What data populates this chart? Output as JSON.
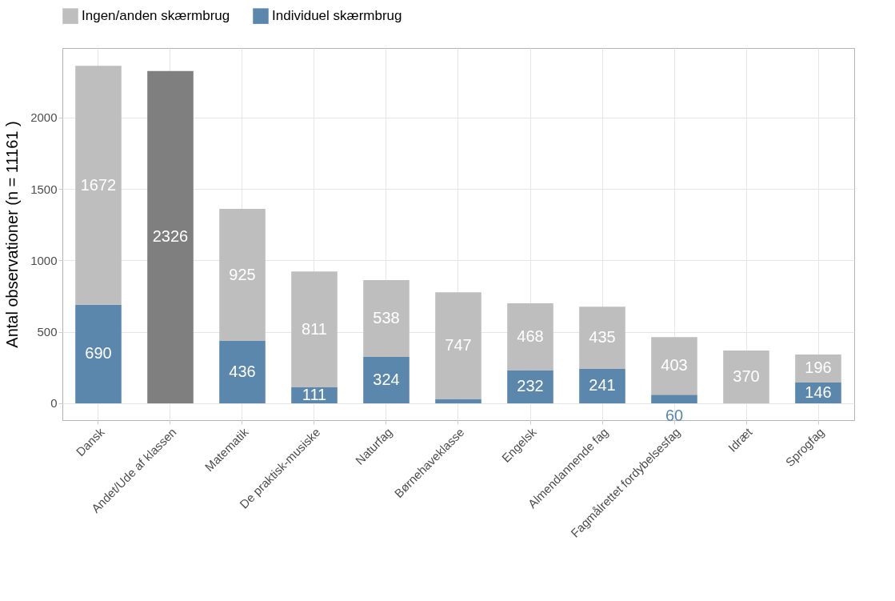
{
  "chart_data": {
    "type": "bar",
    "stacked": true,
    "ylabel": "Antal observationer (n = 11161 )",
    "categories": [
      "Dansk",
      "Andet/Ude af klassen",
      "Matematik",
      "De praktisk-musiske",
      "Naturfag",
      "Børnehaveklasse",
      "Engelsk",
      "Almendannende fag",
      "Fagmålrettet fordybelsesfag",
      "Idræt",
      "Sprogfag"
    ],
    "series": [
      {
        "name": "Individuel skærmbrug",
        "color": "#5b87ad",
        "values": [
          690,
          null,
          436,
          111,
          324,
          30,
          232,
          241,
          60,
          null,
          146
        ],
        "value_labels": [
          "690",
          null,
          "436",
          "111",
          "324",
          null,
          "232",
          "241",
          "60",
          null,
          "146"
        ]
      },
      {
        "name": "Ingen/anden skærmbrug",
        "color": "#bebebe",
        "colors": [
          "#bebebe",
          "#7f7f7f",
          "#bebebe",
          "#bebebe",
          "#bebebe",
          "#bebebe",
          "#bebebe",
          "#bebebe",
          "#bebebe",
          "#bebebe",
          "#bebebe"
        ],
        "values": [
          1672,
          2326,
          925,
          811,
          538,
          747,
          468,
          435,
          403,
          370,
          196
        ],
        "value_labels": [
          "1672",
          "2326",
          "925",
          "811",
          "538",
          "747",
          "468",
          "435",
          "403",
          "370",
          "196"
        ]
      }
    ],
    "ylim": [
      -118,
      2487
    ],
    "yticks": [
      0,
      500,
      1000,
      1500,
      2000
    ],
    "grid": true,
    "legend": "top"
  }
}
